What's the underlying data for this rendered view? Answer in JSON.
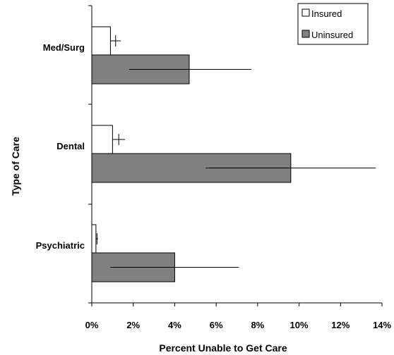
{
  "chart_data": {
    "type": "bar",
    "orientation": "horizontal",
    "categories": [
      "Med/Surg",
      "Dental",
      "Psychiatric"
    ],
    "series": [
      {
        "name": "Insured",
        "color": "#ffffff",
        "values": [
          0.9,
          1.0,
          0.2
        ],
        "error": [
          [
            0.9,
            1.4
          ],
          [
            1.0,
            1.6
          ],
          [
            0.2,
            0.3
          ]
        ]
      },
      {
        "name": "Uninsured",
        "color": "#808080",
        "values": [
          4.7,
          9.6,
          4.0
        ],
        "error": [
          [
            1.8,
            7.7
          ],
          [
            5.5,
            13.7
          ],
          [
            0.9,
            7.1
          ]
        ]
      }
    ],
    "xlabel": "Percent Unable to Get Care",
    "ylabel": "Type of Care",
    "xlim": [
      0,
      14
    ],
    "xticks": [
      0,
      2,
      4,
      6,
      8,
      10,
      12,
      14
    ],
    "xtick_labels": [
      "0%",
      "2%",
      "4%",
      "6%",
      "8%",
      "10%",
      "12%",
      "14%"
    ],
    "grid": false,
    "legend_position": "top-right"
  }
}
